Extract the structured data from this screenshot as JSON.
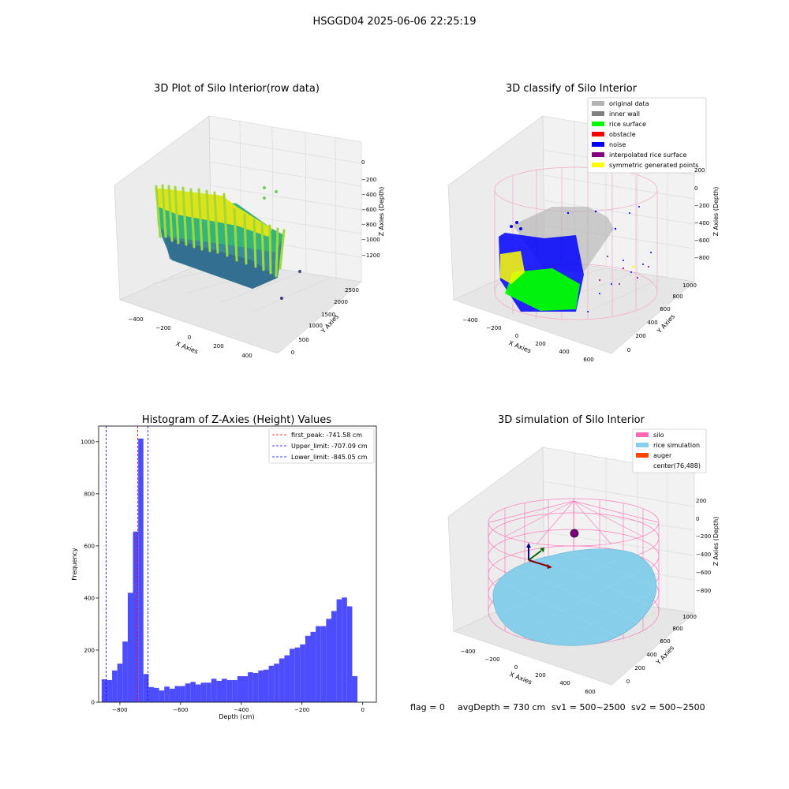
{
  "figure": {
    "suptitle": "HSGGD04 2025-06-06 22:25:19",
    "footer": {
      "flag": "flag = 0",
      "avgDepth": "avgDepth = 730 cm",
      "sv1": "sv1 = 500~2500",
      "sv2": "sv2 = 500~2500"
    }
  },
  "colors": {
    "hist_bar": "#4d4dff",
    "red_line": "#ff0000",
    "blue_line": "#0000ff",
    "original_data": "#b3b3b3",
    "inner_wall": "#808080",
    "rice_surface": "#00ff00",
    "obstacle": "#ff0000",
    "noise": "#0000ff",
    "interpolated_rice_surface": "#800080",
    "symmetric_generated_points": "#ffff00",
    "silo": "#ff69b4",
    "rice_simulation": "#87ceeb",
    "auger": "#ff4500",
    "pane": "#f2f2f2",
    "grid": "#d9d9d9"
  },
  "panel_raw": {
    "title": "3D Plot of Silo Interior(row data)",
    "xlabel": "X Axies",
    "ylabel": "Y Axies",
    "zlabel": "Z Axies (Depth)",
    "xticks": [
      "−400",
      "−200",
      "0",
      "200",
      "400"
    ],
    "yticks": [
      "0",
      "500",
      "1000",
      "1500",
      "2000",
      "2500"
    ],
    "zticks": [
      "0",
      "−200",
      "−400",
      "−600",
      "−800",
      "−1000",
      "−1200"
    ]
  },
  "panel_classify": {
    "title": "3D classify of Silo Interior",
    "xlabel": "X Axies",
    "ylabel": "Y Axies",
    "zlabel": "Z Axies (Depth)",
    "xticks": [
      "−400",
      "−200",
      "0",
      "200",
      "400",
      "600"
    ],
    "yticks": [
      "0",
      "200",
      "400",
      "600",
      "800",
      "1000"
    ],
    "zticks": [
      "200",
      "0",
      "−200",
      "−400",
      "−600",
      "−800"
    ],
    "legend": [
      {
        "label": "original data",
        "color": "#b3b3b3"
      },
      {
        "label": "inner wall",
        "color": "#808080"
      },
      {
        "label": "rice surface",
        "color": "#00ff00"
      },
      {
        "label": "obstacle",
        "color": "#ff0000"
      },
      {
        "label": "noise",
        "color": "#0000ff"
      },
      {
        "label": "interpolated rice surface",
        "color": "#800080"
      },
      {
        "label": "symmetric generated points",
        "color": "#ffff00"
      }
    ]
  },
  "panel_sim": {
    "title": "3D simulation of Silo Interior",
    "xlabel": "X Axies",
    "ylabel": "Y Axies",
    "zlabel": "Z Axies (Depth)",
    "xticks": [
      "−400",
      "−200",
      "0",
      "200",
      "400",
      "600"
    ],
    "yticks": [
      "0",
      "200",
      "400",
      "600",
      "800",
      "1000"
    ],
    "zticks": [
      "200",
      "0",
      "−200",
      "−400",
      "−600",
      "−800"
    ],
    "legend": [
      {
        "label": "silo",
        "color": "#ff69b4"
      },
      {
        "label": "rice simulation",
        "color": "#87ceeb"
      },
      {
        "label": "auger",
        "color": "#ff4500"
      },
      {
        "label": "center(76,488)",
        "color": ""
      }
    ]
  },
  "chart_data": {
    "type": "bar",
    "title": "Histogram of Z-Axies (Height) Values",
    "xlabel": "Depth (cm)",
    "ylabel": "Frequency",
    "xlim": [
      -870,
      45
    ],
    "ylim": [
      0,
      1060
    ],
    "xticks": [
      -800,
      -600,
      -400,
      -200,
      0
    ],
    "xtick_labels": [
      "−800",
      "−600",
      "−400",
      "−200",
      "0"
    ],
    "yticks": [
      0,
      200,
      400,
      600,
      800,
      1000
    ],
    "ytick_labels": [
      "0",
      "200",
      "400",
      "600",
      "800",
      "1000"
    ],
    "bin_start": -860,
    "bin_width": 17.2,
    "values": [
      88,
      85,
      122,
      148,
      233,
      420,
      655,
      1012,
      108,
      58,
      55,
      45,
      60,
      52,
      62,
      62,
      72,
      78,
      68,
      75,
      75,
      90,
      82,
      90,
      85,
      85,
      100,
      100,
      115,
      112,
      122,
      125,
      140,
      148,
      168,
      180,
      205,
      210,
      222,
      255,
      270,
      292,
      292,
      320,
      350,
      395,
      402,
      368,
      100
    ],
    "lines": [
      {
        "label": "first_peak: -741.58 cm",
        "x": -741.58,
        "color": "#ff0000"
      },
      {
        "label": "Upper_limit: -707.09 cm",
        "x": -707.09,
        "color": "#0000ff"
      },
      {
        "label": "Lower_limit: -845.05 cm",
        "x": -845.05,
        "color": "#0000ff"
      }
    ],
    "legend_position": "upper right"
  }
}
